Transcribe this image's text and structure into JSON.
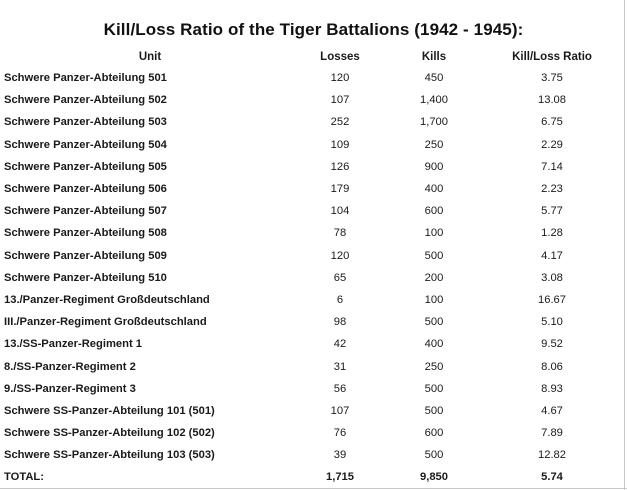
{
  "title": "Kill/Loss Ratio of the Tiger Battalions (1942 - 1945):",
  "headers": {
    "unit": "Unit",
    "losses": "Losses",
    "kills": "Kills",
    "ratio": "Kill/Loss Ratio"
  },
  "rows": [
    {
      "unit": "Schwere Panzer-Abteilung 501",
      "losses": "120",
      "kills": "450",
      "ratio": "3.75"
    },
    {
      "unit": "Schwere Panzer-Abteilung 502",
      "losses": "107",
      "kills": "1,400",
      "ratio": "13.08"
    },
    {
      "unit": "Schwere Panzer-Abteilung 503",
      "losses": "252",
      "kills": "1,700",
      "ratio": "6.75"
    },
    {
      "unit": "Schwere Panzer-Abteilung 504",
      "losses": "109",
      "kills": "250",
      "ratio": "2.29"
    },
    {
      "unit": "Schwere Panzer-Abteilung 505",
      "losses": "126",
      "kills": "900",
      "ratio": "7.14"
    },
    {
      "unit": "Schwere Panzer-Abteilung 506",
      "losses": "179",
      "kills": "400",
      "ratio": "2.23"
    },
    {
      "unit": "Schwere Panzer-Abteilung 507",
      "losses": "104",
      "kills": "600",
      "ratio": "5.77"
    },
    {
      "unit": "Schwere Panzer-Abteilung 508",
      "losses": "78",
      "kills": "100",
      "ratio": "1.28"
    },
    {
      "unit": "Schwere Panzer-Abteilung 509",
      "losses": "120",
      "kills": "500",
      "ratio": "4.17"
    },
    {
      "unit": "Schwere Panzer-Abteilung 510",
      "losses": "65",
      "kills": "200",
      "ratio": "3.08"
    },
    {
      "unit": "13./Panzer-Regiment Großdeutschland",
      "losses": "6",
      "kills": "100",
      "ratio": "16.67"
    },
    {
      "unit": "III./Panzer-Regiment Großdeutschland",
      "losses": "98",
      "kills": "500",
      "ratio": "5.10"
    },
    {
      "unit": "13./SS-Panzer-Regiment 1",
      "losses": "42",
      "kills": "400",
      "ratio": "9.52"
    },
    {
      "unit": "8./SS-Panzer-Regiment 2",
      "losses": "31",
      "kills": "250",
      "ratio": "8.06"
    },
    {
      "unit": "9./SS-Panzer-Regiment 3",
      "losses": "56",
      "kills": "500",
      "ratio": "8.93"
    },
    {
      "unit": "Schwere SS-Panzer-Abteilung 101 (501)",
      "losses": "107",
      "kills": "500",
      "ratio": "4.67"
    },
    {
      "unit": "Schwere SS-Panzer-Abteilung 102 (502)",
      "losses": "76",
      "kills": "600",
      "ratio": "7.89"
    },
    {
      "unit": "Schwere SS-Panzer-Abteilung 103 (503)",
      "losses": "39",
      "kills": "500",
      "ratio": "12.82"
    }
  ],
  "total": {
    "unit": "TOTAL:",
    "losses": "1,715",
    "kills": "9,850",
    "ratio": "5.74"
  }
}
